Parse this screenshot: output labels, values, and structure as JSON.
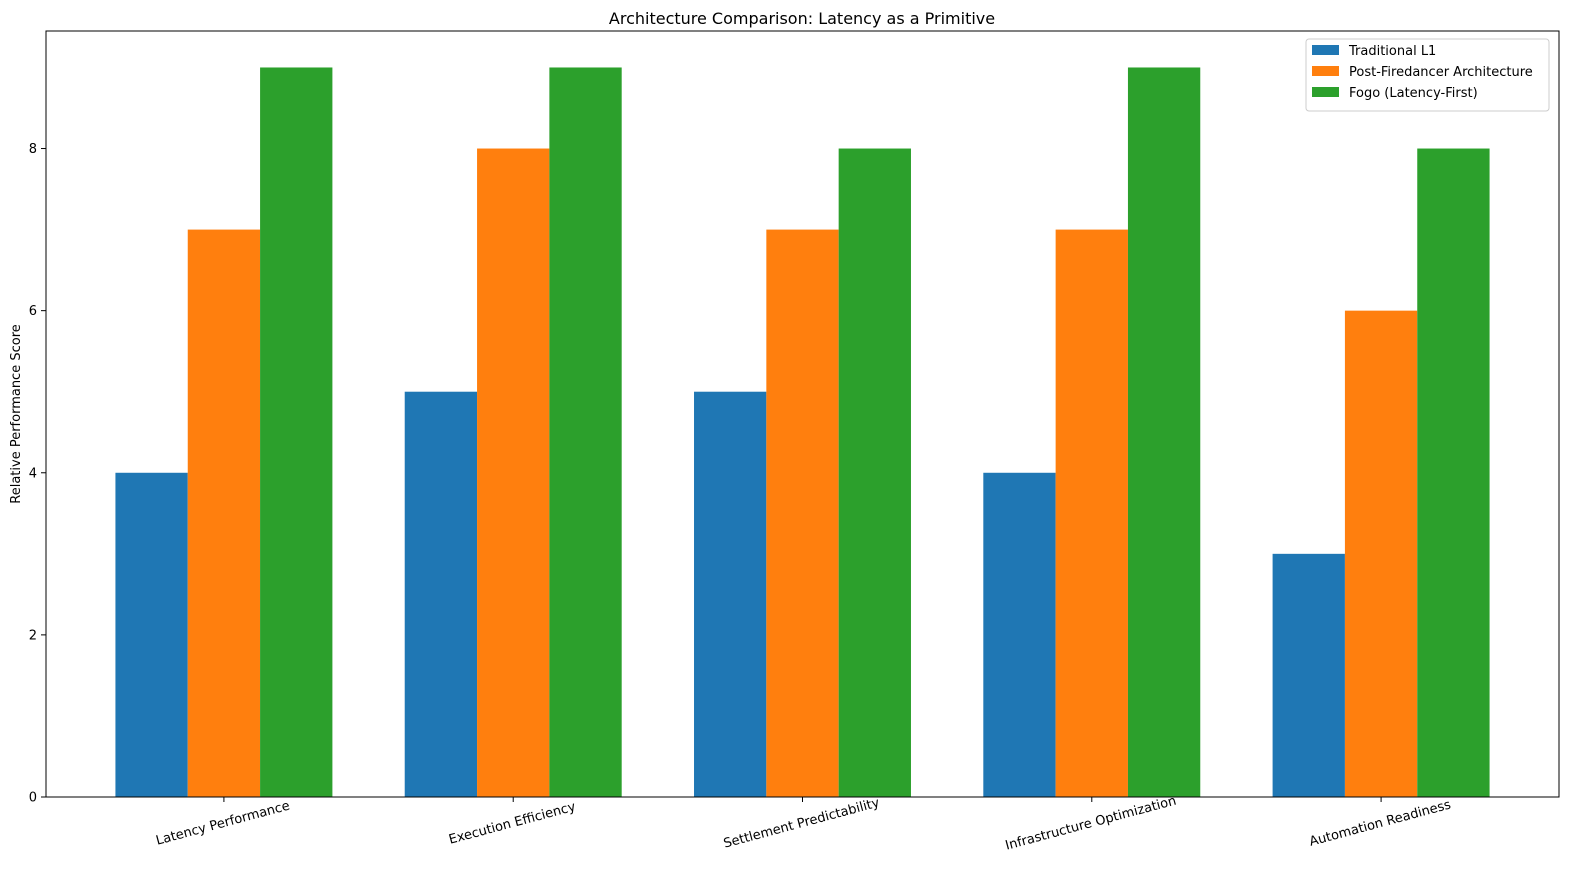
{
  "chart_data": {
    "type": "bar",
    "title": "Architecture Comparison: Latency as a Primitive",
    "xlabel": "",
    "ylabel": "Relative Performance Score",
    "categories": [
      "Latency Performance",
      "Execution Efficiency",
      "Settlement Predictability",
      "Infrastructure Optimization",
      "Automation Readiness"
    ],
    "series": [
      {
        "name": "Traditional L1",
        "color": "#1f77b4",
        "values": [
          4,
          5,
          5,
          4,
          3
        ]
      },
      {
        "name": "Post-Firedancer Architecture",
        "color": "#ff7f0e",
        "values": [
          7,
          8,
          7,
          7,
          6
        ]
      },
      {
        "name": "Fogo (Latency-First)",
        "color": "#2ca02c",
        "values": [
          9,
          9,
          8,
          9,
          8
        ]
      }
    ],
    "ylim": [
      0,
      9.45
    ],
    "yticks": [
      0,
      2,
      4,
      6,
      8
    ],
    "grid": false,
    "legend_position": "top-right",
    "x_tick_rotation_deg": -15
  }
}
